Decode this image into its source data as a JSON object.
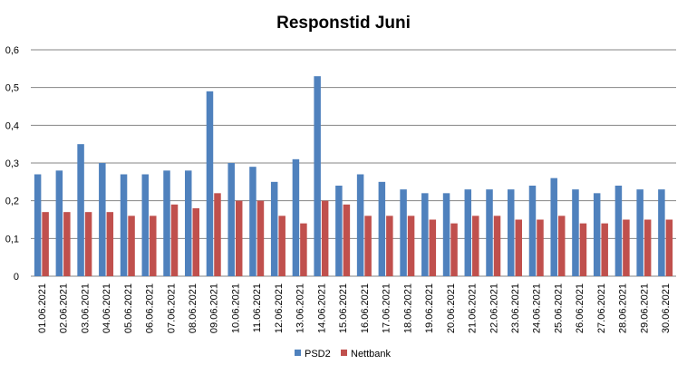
{
  "chart_data": {
    "type": "bar",
    "title": "Responstid Juni",
    "xlabel": "",
    "ylabel": "",
    "ylim": [
      0,
      0.6
    ],
    "yticks": [
      "0",
      "0,1",
      "0,2",
      "0,3",
      "0,4",
      "0,5",
      "0,6"
    ],
    "grid": true,
    "legend_position": "bottom",
    "categories": [
      "01.06.2021",
      "02.06.2021",
      "03.06.2021",
      "04.06.2021",
      "05.06.2021",
      "06.06.2021",
      "07.06.2021",
      "08.06.2021",
      "09.06.2021",
      "10.06.2021",
      "11.06.2021",
      "12.06.2021",
      "13.06.2021",
      "14.06.2021",
      "15.06.2021",
      "16.06.2021",
      "17.06.2021",
      "18.06.2021",
      "19.06.2021",
      "20.06.2021",
      "21.06.2021",
      "22.06.2021",
      "23.06.2021",
      "24.06.2021",
      "25.06.2021",
      "26.06.2021",
      "27.06.2021",
      "28.06.2021",
      "29.06.2021",
      "30.06.2021"
    ],
    "series": [
      {
        "name": "PSD2",
        "color": "#4F81BD",
        "values": [
          0.27,
          0.28,
          0.35,
          0.3,
          0.27,
          0.27,
          0.28,
          0.28,
          0.49,
          0.3,
          0.29,
          0.25,
          0.31,
          0.53,
          0.24,
          0.27,
          0.25,
          0.23,
          0.22,
          0.22,
          0.23,
          0.23,
          0.23,
          0.24,
          0.26,
          0.23,
          0.22,
          0.24,
          0.23,
          0.23
        ]
      },
      {
        "name": "Nettbank",
        "color": "#C0504D",
        "values": [
          0.17,
          0.17,
          0.17,
          0.17,
          0.16,
          0.16,
          0.19,
          0.18,
          0.22,
          0.2,
          0.2,
          0.16,
          0.14,
          0.2,
          0.19,
          0.16,
          0.16,
          0.16,
          0.15,
          0.14,
          0.16,
          0.16,
          0.15,
          0.15,
          0.16,
          0.14,
          0.14,
          0.15,
          0.15,
          0.15
        ]
      }
    ]
  }
}
